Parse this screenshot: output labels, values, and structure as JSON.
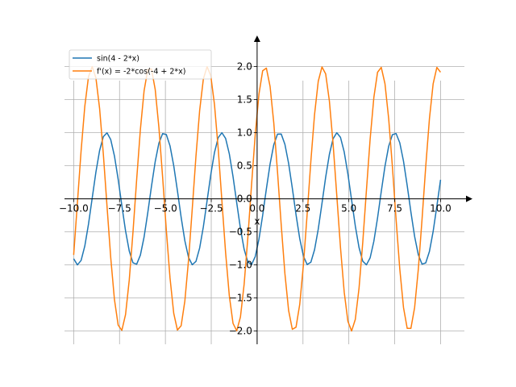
{
  "chart_data": {
    "type": "line",
    "title": "",
    "xlabel": "x",
    "ylabel": "",
    "xlim": [
      -10.5,
      11.3
    ],
    "ylim": [
      -2.2,
      2.3
    ],
    "grid": true,
    "xticks": [
      -10.0,
      -7.5,
      -5.0,
      -2.5,
      0.0,
      2.5,
      5.0,
      7.5,
      10.0
    ],
    "xtick_labels": [
      "−10.0",
      "−7.5",
      "−5.0",
      "−2.5",
      "0.0",
      "2.5",
      "5.0",
      "7.5",
      "10.0"
    ],
    "yticks": [
      -2.0,
      -1.5,
      -1.0,
      -0.5,
      0.0,
      0.5,
      1.0,
      1.5,
      2.0
    ],
    "ytick_labels": [
      "−2.0",
      "−1.5",
      "−1.0",
      "−0.5",
      "0.0",
      "0.5",
      "1.0",
      "1.5",
      "2.0"
    ],
    "legend_position": "top-left",
    "x_range": [
      -10,
      10
    ],
    "num_samples": 100,
    "series": [
      {
        "name": "sin(4 - 2*x)",
        "expression": "sin(4 - 2*x)",
        "color": "#1f77b4"
      },
      {
        "name": "f'(x) = -2*cos(-4 + 2*x)",
        "expression": "-2*cos(-4 + 2*x)",
        "color": "#ff7f0e"
      }
    ]
  }
}
